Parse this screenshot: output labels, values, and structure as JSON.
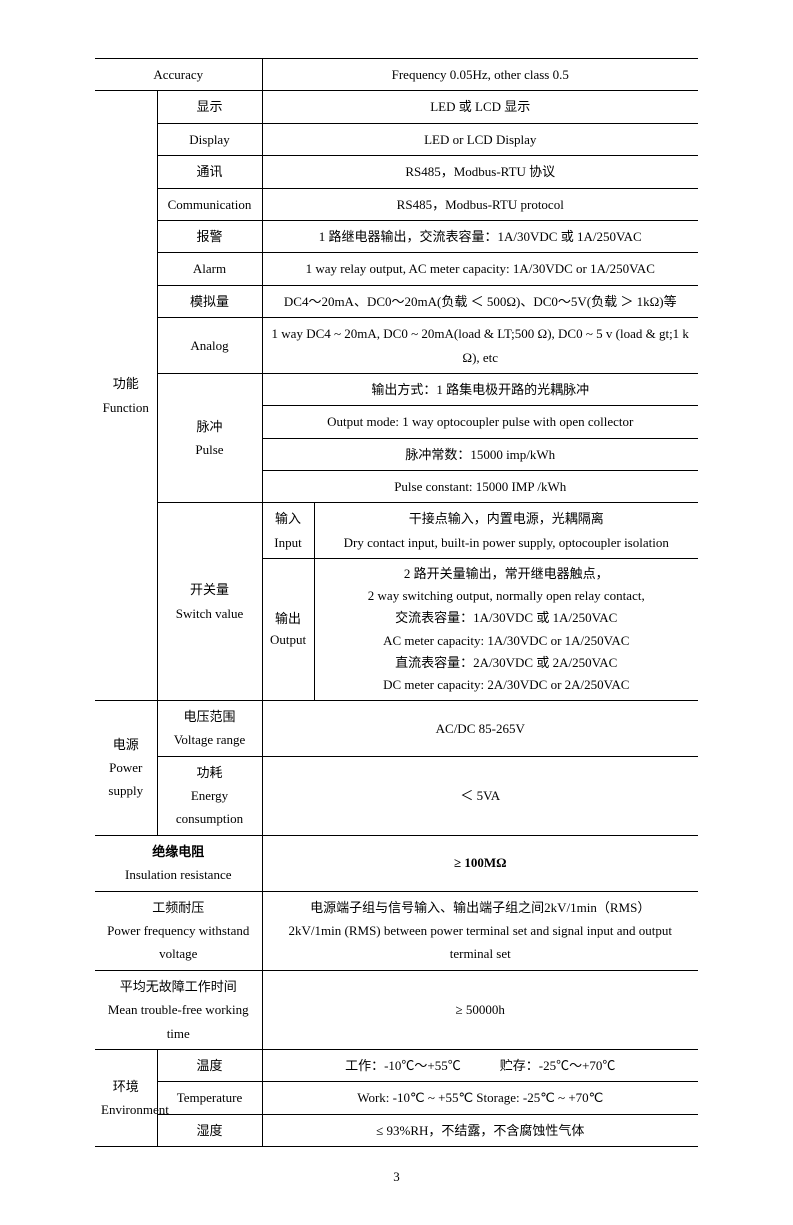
{
  "table": {
    "accuracy": {
      "label": "Accuracy",
      "value": "Frequency 0.05Hz, other class 0.5"
    },
    "function": {
      "label_cn": "功能",
      "label_en": "Function",
      "display": {
        "cn": "显示",
        "en": "Display",
        "val_cn": "LED 或 LCD 显示",
        "val_en": "LED or LCD Display"
      },
      "comm": {
        "cn": "通讯",
        "en": "Communication",
        "val_cn": "RS485，Modbus-RTU 协议",
        "val_en": "RS485，Modbus-RTU protocol"
      },
      "alarm": {
        "cn": "报警",
        "en": "Alarm",
        "val_cn": "1 路继电器输出，交流表容量：1A/30VDC 或 1A/250VAC",
        "val_en": "1 way relay output, AC meter capacity: 1A/30VDC or 1A/250VAC"
      },
      "analog": {
        "cn": "模拟量",
        "en": "Analog",
        "val_cn": "DC4～20mA、DC0～20mA(负载 ＜ 500Ω)、DC0～5V(负载 ＞ 1kΩ)等",
        "val_en": "1 way   DC4 ~ 20mA, DC0 ~ 20mA(load & LT;500 Ω), DC0 ~ 5 v (load & gt;1 k Ω), etc"
      },
      "pulse": {
        "cn": "脉冲",
        "en": "Pulse",
        "l1": "输出方式：1 路集电极开路的光耦脉冲",
        "l2": "Output mode: 1 way optocoupler pulse with open collector",
        "l3": "脉冲常数：15000 imp/kWh",
        "l4": "Pulse constant: 15000 IMP /kWh"
      },
      "switch": {
        "cn": "开关量",
        "en": "Switch value",
        "input": {
          "cn": "输入",
          "en": "Input",
          "val_cn": "干接点输入，内置电源，光耦隔离",
          "val_en": "Dry contact input, built-in power supply, optocoupler isolation"
        },
        "output": {
          "cn": "输出",
          "en": "Output",
          "l1": "2 路开关量输出，常开继电器触点，",
          "l2": "2 way switching output, normally open relay contact,",
          "l3": "交流表容量：1A/30VDC 或 1A/250VAC",
          "l4": "AC meter capacity: 1A/30VDC or 1A/250VAC",
          "l5": "直流表容量：2A/30VDC 或 2A/250VAC",
          "l6": "DC meter capacity: 2A/30VDC or 2A/250VAC"
        }
      }
    },
    "power": {
      "label_cn": "电源",
      "label_en": "Power supply",
      "vrange": {
        "cn": "电压范围",
        "en": "Voltage range",
        "val": "AC/DC 85-265V"
      },
      "energy": {
        "cn": "功耗",
        "en": "Energy consumption",
        "val": "＜ 5VA"
      }
    },
    "insulation": {
      "cn": "绝缘电阻",
      "en": "Insulation resistance",
      "val": "≥ 100MΩ"
    },
    "pfw": {
      "cn": "工频耐压",
      "en": "Power frequency withstand voltage",
      "val_cn": "电源端子组与信号输入、输出端子组之间2kV/1min（RMS）",
      "val_en": "2kV/1min (RMS) between power terminal set and signal input and output terminal set"
    },
    "mtbf": {
      "cn": "平均无故障工作时间",
      "en": "Mean trouble-free working time",
      "val": "≥ 50000h"
    },
    "env": {
      "label_cn": "环境",
      "label_en": "Environment",
      "temp": {
        "cn": "温度",
        "en": "Temperature",
        "val_cn": "工作：-10℃～+55℃   贮存：-25℃～+70℃",
        "val_en": "Work: -10℃ ~ +55℃ Storage: -25℃ ~ +70℃"
      },
      "humidity": {
        "cn": "湿度",
        "val": "≤ 93%RH，不结露，不含腐蚀性气体"
      }
    }
  },
  "page_number": "3"
}
